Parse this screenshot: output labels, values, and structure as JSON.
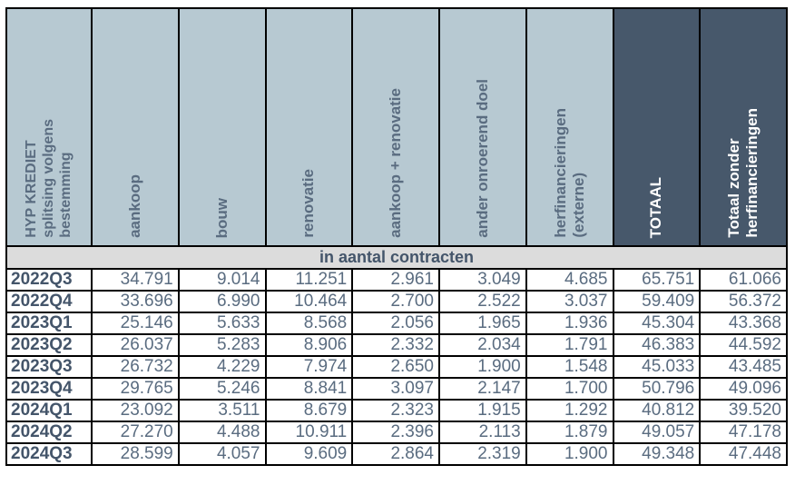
{
  "colors": {
    "header_light_bg": "#b7c9d2",
    "header_dark_bg": "#47586b",
    "band_bg": "#dcdcdc",
    "grid_border": "#000000",
    "text_dark": "#44556a",
    "text_slate": "#5a6c80",
    "text_white": "#ffffff"
  },
  "chart_data": {
    "type": "table",
    "title": "HYP KREDIET splitsing volgens bestemming",
    "corner_header": "HYP KREDIET\nsplitsing volgens\nbestemming",
    "band_label": "in aantal contracten",
    "columns": [
      {
        "label": "aankoop",
        "style": "light"
      },
      {
        "label": "bouw",
        "style": "light"
      },
      {
        "label": "renovatie",
        "style": "light"
      },
      {
        "label": "aankoop + renovatie",
        "style": "light"
      },
      {
        "label": "ander onroerend doel",
        "style": "light"
      },
      {
        "label": "herfinancieringen\n(externe)",
        "style": "light"
      },
      {
        "label": "TOTAAL",
        "style": "dark"
      },
      {
        "label": "Totaal zonder\nherfinancieringen",
        "style": "dark"
      }
    ],
    "rows": [
      {
        "period": "2022Q3",
        "values": [
          "34.791",
          "9.014",
          "11.251",
          "2.961",
          "3.049",
          "4.685",
          "65.751",
          "61.066"
        ]
      },
      {
        "period": "2022Q4",
        "values": [
          "33.696",
          "6.990",
          "10.464",
          "2.700",
          "2.522",
          "3.037",
          "59.409",
          "56.372"
        ]
      },
      {
        "period": "2023Q1",
        "values": [
          "25.146",
          "5.633",
          "8.568",
          "2.056",
          "1.965",
          "1.936",
          "45.304",
          "43.368"
        ]
      },
      {
        "period": "2023Q2",
        "values": [
          "26.037",
          "5.283",
          "8.906",
          "2.332",
          "2.034",
          "1.791",
          "46.383",
          "44.592"
        ]
      },
      {
        "period": "2023Q3",
        "values": [
          "26.732",
          "4.229",
          "7.974",
          "2.650",
          "1.900",
          "1.548",
          "45.033",
          "43.485"
        ]
      },
      {
        "period": "2023Q4",
        "values": [
          "29.765",
          "5.246",
          "8.841",
          "3.097",
          "2.147",
          "1.700",
          "50.796",
          "49.096"
        ]
      },
      {
        "period": "2024Q1",
        "values": [
          "23.092",
          "3.511",
          "8.679",
          "2.323",
          "1.915",
          "1.292",
          "40.812",
          "39.520"
        ]
      },
      {
        "period": "2024Q2",
        "values": [
          "27.270",
          "4.488",
          "10.911",
          "2.396",
          "2.113",
          "1.879",
          "49.057",
          "47.178"
        ]
      },
      {
        "period": "2024Q3",
        "values": [
          "28.599",
          "4.057",
          "9.609",
          "2.864",
          "2.319",
          "1.900",
          "49.348",
          "47.448"
        ]
      }
    ]
  }
}
